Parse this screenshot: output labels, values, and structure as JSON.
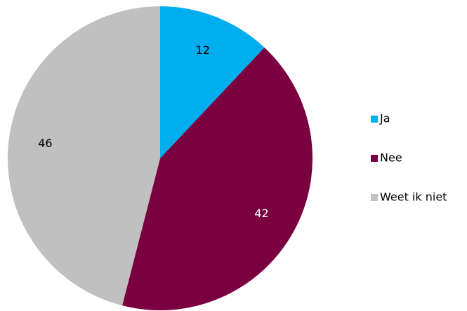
{
  "chart_data": {
    "type": "pie",
    "title": "",
    "slices": [
      {
        "label": "Ja",
        "value": 12,
        "value_label": "12",
        "color": "#00adee",
        "label_color": "#000000"
      },
      {
        "label": "Nee",
        "value": 42,
        "value_label": "42",
        "color": "#7b003f",
        "label_color": "#ffffff"
      },
      {
        "label": "Weet ik niet",
        "value": 46,
        "value_label": "46",
        "color": "#c0c0c0",
        "label_color": "#000000"
      }
    ],
    "start_angle": "12 o'clock",
    "direction": "clockwise",
    "legend": {
      "position": "right"
    }
  }
}
